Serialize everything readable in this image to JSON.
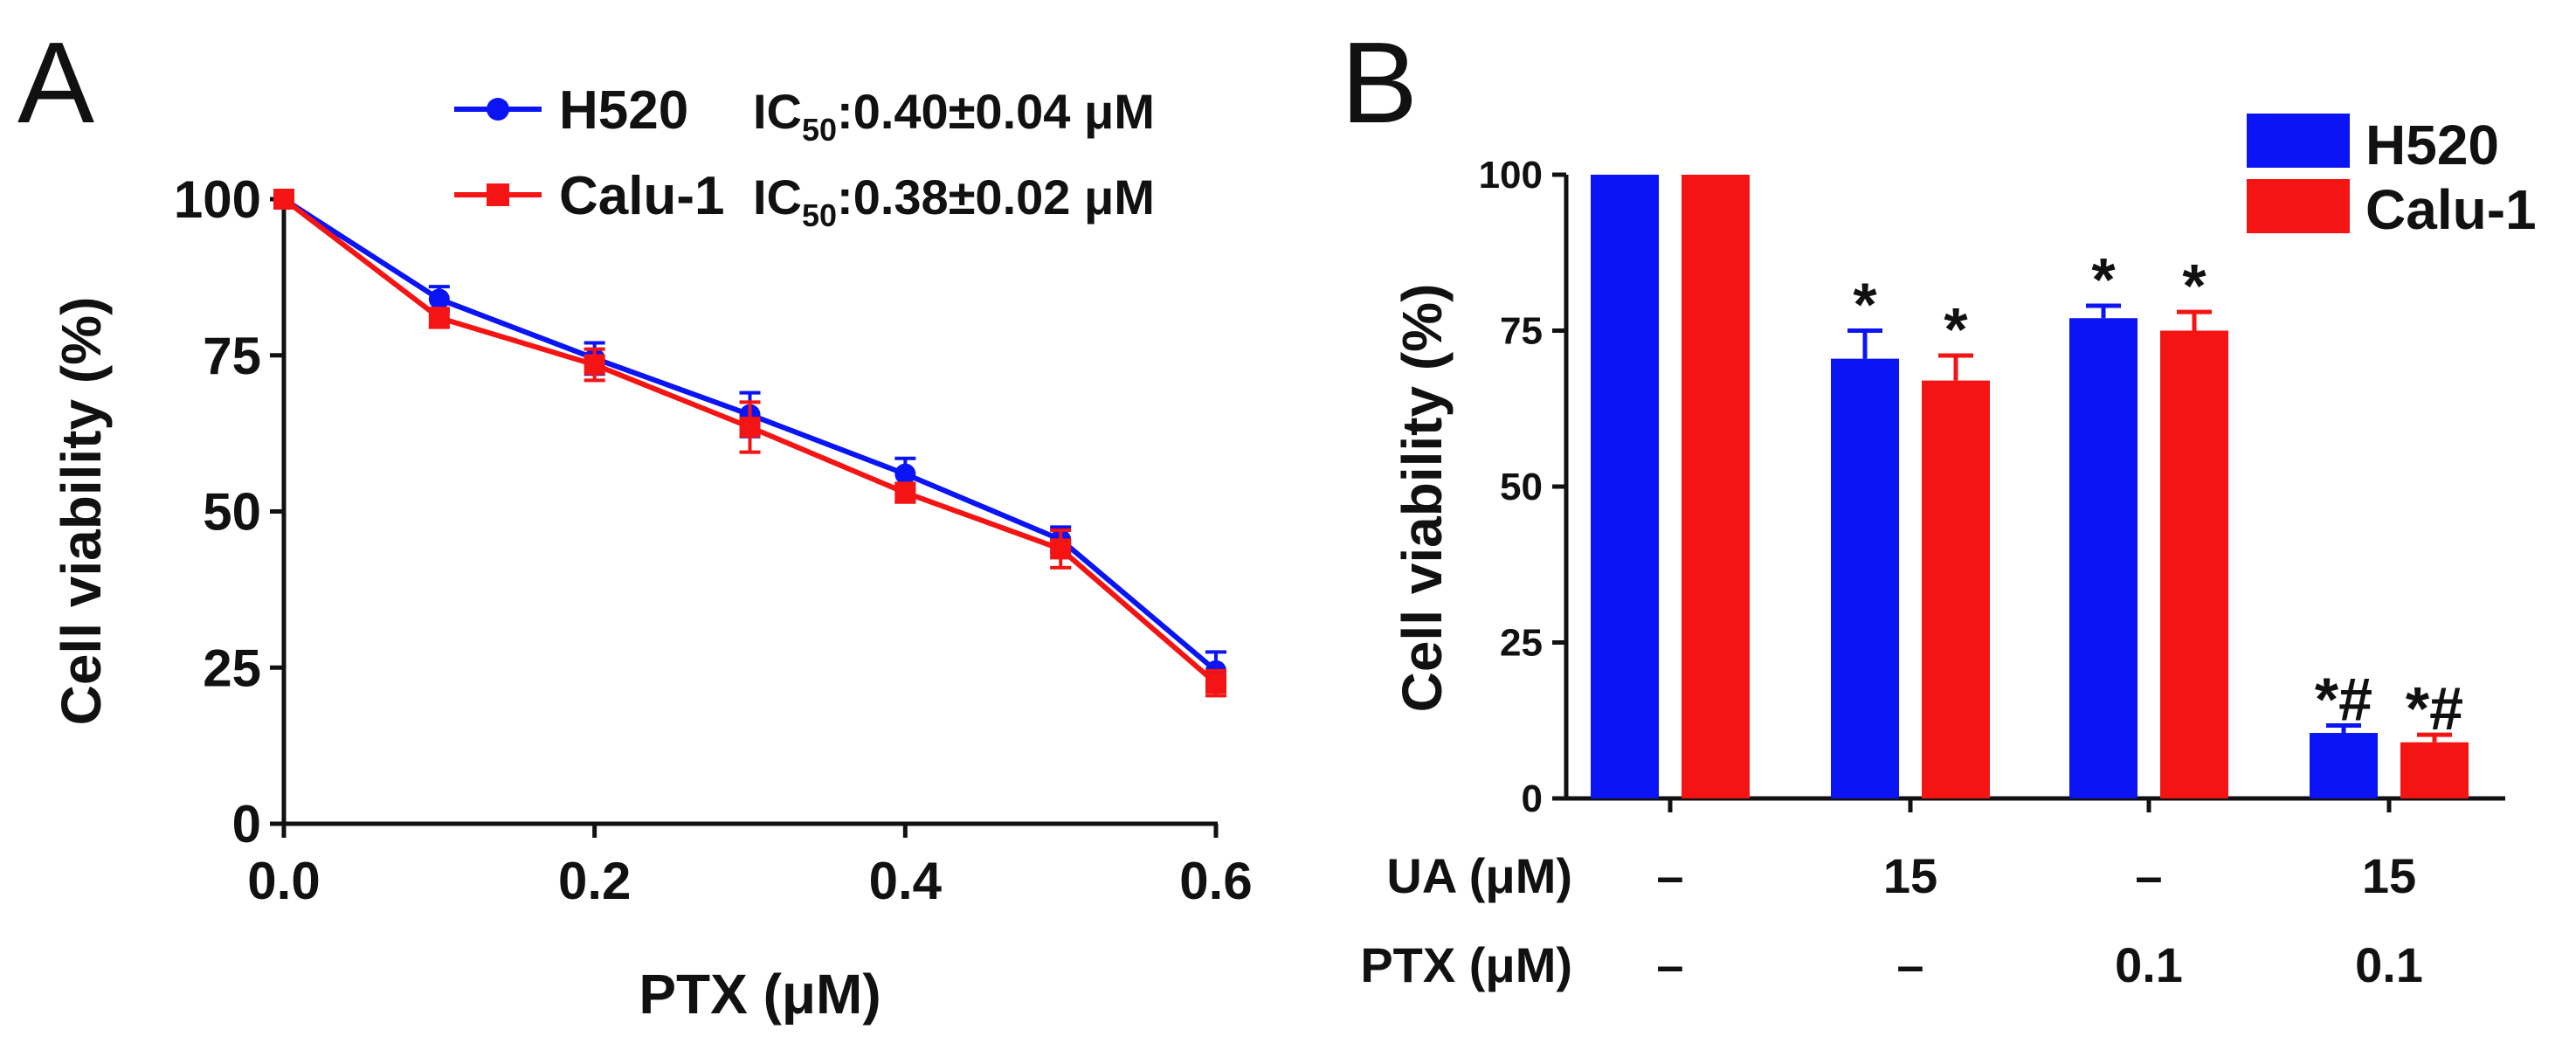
{
  "colors": {
    "h520": "#0a14f5",
    "calu1": "#f51414",
    "axis": "#111111"
  },
  "chart_data": [
    {
      "panel_label": "A",
      "type": "line",
      "xlabel": "PTX (μM)",
      "ylabel": "Cell viability (%)",
      "xlim": [
        0,
        0.6
      ],
      "ylim": [
        0,
        100
      ],
      "xticks": [
        "0.0",
        "0.2",
        "0.4",
        "0.6"
      ],
      "yticks": [
        "0",
        "25",
        "50",
        "75",
        "100"
      ],
      "x": [
        0,
        0.1,
        0.2,
        0.3,
        0.4,
        0.5,
        0.6
      ],
      "series": [
        {
          "name": "H520",
          "marker": "circle",
          "ic50_prefix": "IC",
          "ic50_sub": "50",
          "ic50_value": ":0.40±0.04 μM",
          "values": [
            100,
            84,
            74.5,
            65.5,
            56,
            45.5,
            24.5
          ],
          "errors": [
            1,
            2,
            2.5,
            3.5,
            2.5,
            2,
            3
          ]
        },
        {
          "name": "Calu-1",
          "marker": "square",
          "ic50_prefix": "IC",
          "ic50_sub": "50",
          "ic50_value": ":0.38±0.02 μM",
          "values": [
            100,
            81,
            73.5,
            63.5,
            53,
            44,
            22.5
          ],
          "errors": [
            1,
            1.5,
            2.5,
            4,
            1.5,
            3,
            2
          ]
        }
      ]
    },
    {
      "panel_label": "B",
      "type": "bar",
      "ylabel": "Cell viability (%)",
      "ylim": [
        0,
        100
      ],
      "yticks": [
        "0",
        "25",
        "50",
        "75",
        "100"
      ],
      "legend": [
        "H520",
        "Calu-1"
      ],
      "row_labels": {
        "ua": "UA (μM)",
        "ptx": "PTX (μM)"
      },
      "groups": [
        {
          "ua": "–",
          "ptx": "–"
        },
        {
          "ua": "15",
          "ptx": "–"
        },
        {
          "ua": "–",
          "ptx": "0.1"
        },
        {
          "ua": "15",
          "ptx": "0.1"
        }
      ],
      "series": [
        {
          "name": "H520",
          "values": [
            100,
            70.5,
            77,
            10.5
          ],
          "errors": [
            0,
            4.5,
            2,
            1.2
          ],
          "annotations": [
            "",
            "*",
            "*",
            "*#"
          ]
        },
        {
          "name": "Calu-1",
          "values": [
            100,
            67,
            75,
            9
          ],
          "errors": [
            0,
            4,
            3,
            1.2
          ],
          "annotations": [
            "",
            "*",
            "*",
            "*#"
          ]
        }
      ]
    }
  ]
}
